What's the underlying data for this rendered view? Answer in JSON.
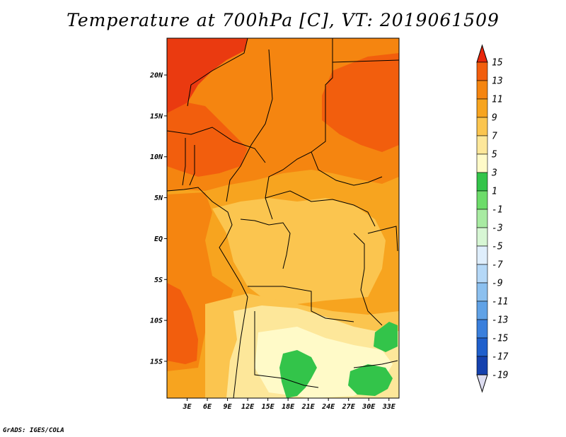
{
  "title": "Temperature at 700hPa [C], VT: 2019061509",
  "credit": "GrADS: IGES/COLA",
  "map": {
    "lon_range": [
      0,
      34.5
    ],
    "lat_range": [
      -19.5,
      24.5
    ],
    "lat_ticks": [
      {
        "value": 20,
        "label": "20N"
      },
      {
        "value": 15,
        "label": "15N"
      },
      {
        "value": 10,
        "label": "10N"
      },
      {
        "value": 5,
        "label": "5N"
      },
      {
        "value": 0,
        "label": "EQ"
      },
      {
        "value": -5,
        "label": "5S"
      },
      {
        "value": -10,
        "label": "10S"
      },
      {
        "value": -15,
        "label": "15S"
      }
    ],
    "lon_ticks": [
      {
        "value": 3,
        "label": "3E"
      },
      {
        "value": 6,
        "label": "6E"
      },
      {
        "value": 9,
        "label": "9E"
      },
      {
        "value": 12,
        "label": "12E"
      },
      {
        "value": 15,
        "label": "15E"
      },
      {
        "value": 18,
        "label": "18E"
      },
      {
        "value": 21,
        "label": "21E"
      },
      {
        "value": 24,
        "label": "24E"
      },
      {
        "value": 27,
        "label": "27E"
      },
      {
        "value": 30,
        "label": "30E"
      },
      {
        "value": 33,
        "label": "33E"
      }
    ]
  },
  "colorbar": {
    "labels": [
      "15",
      "13",
      "11",
      "9",
      "7",
      "5",
      "3",
      "1",
      "-1",
      "-3",
      "-5",
      "-7",
      "-9",
      "-11",
      "-13",
      "-15",
      "-17",
      "-19"
    ],
    "top_color": "#e8260c",
    "bottom_color": "#dcdcf0",
    "colors": [
      "#ea3a10",
      "#f25e0d",
      "#f58510",
      "#f7a41f",
      "#fbc54f",
      "#fde79a",
      "#fffac8",
      "#33c44a",
      "#6ddc6a",
      "#a8eba2",
      "#d7f6d4",
      "#dfeefc",
      "#b5d8f7",
      "#8cc0ef",
      "#60a2e6",
      "#3a7fdc",
      "#1f5fcc",
      "#1541ae",
      "#0b228a",
      "#0a0f63"
    ]
  }
}
